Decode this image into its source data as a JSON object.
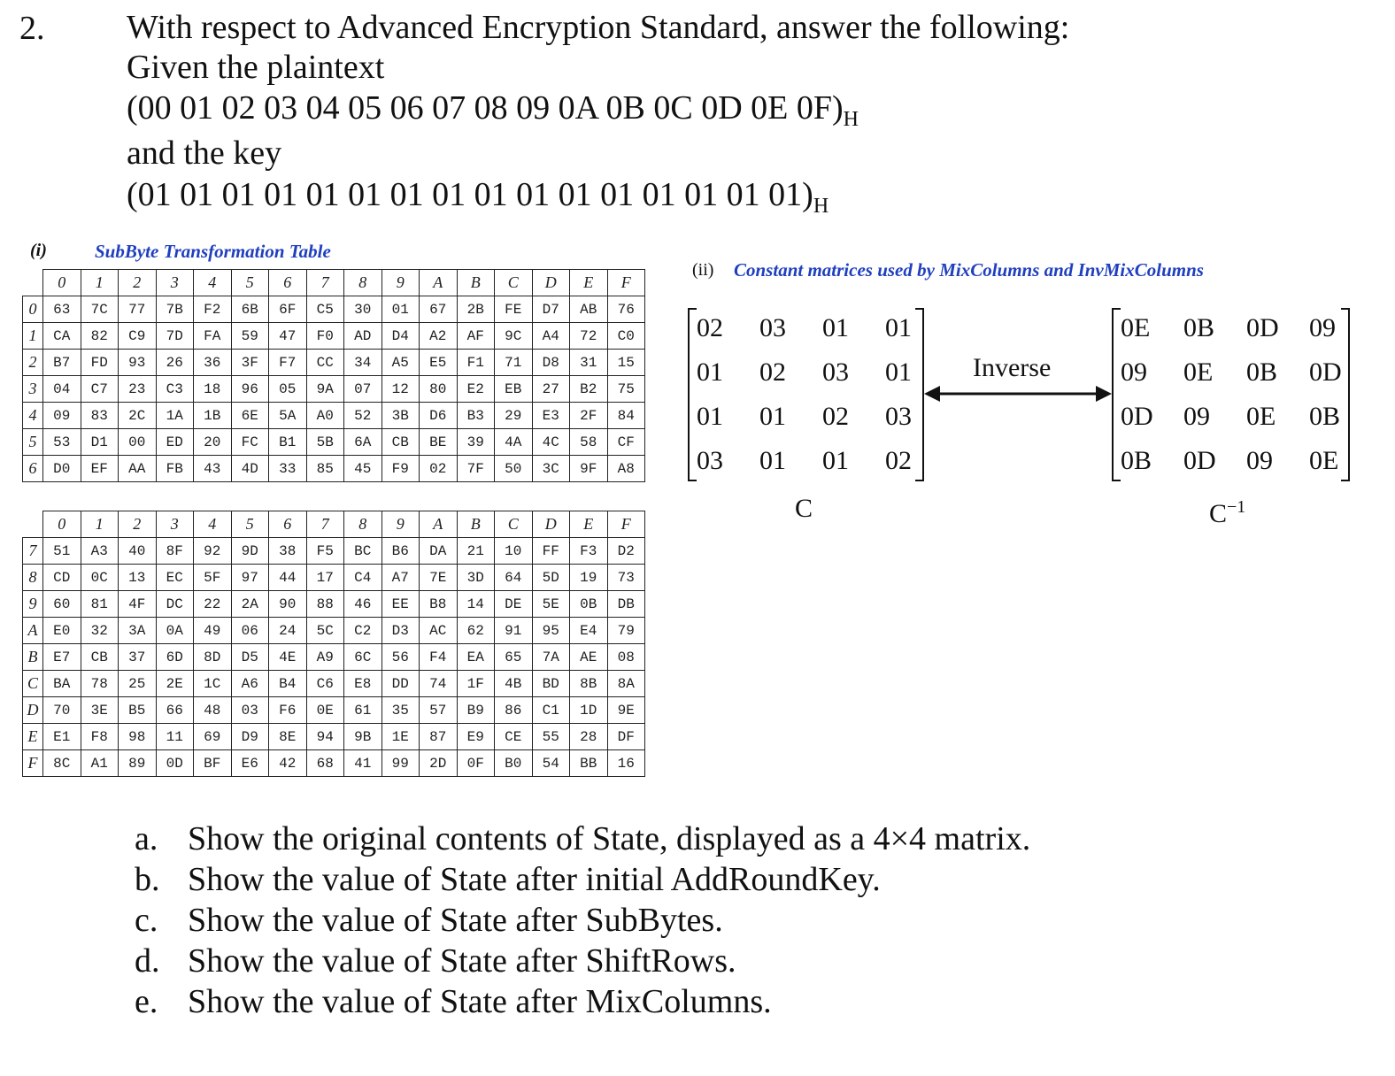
{
  "question": {
    "number": "2.",
    "lines": [
      "With respect to Advanced Encryption Standard, answer the following:",
      "Given the plaintext",
      "(00 01 02 03 04 05 06 07 08 09 0A 0B 0C 0D 0E 0F)",
      "and the key",
      "(01 01 01 01 01 01 01 01 01 01 01 01 01 01 01 01)"
    ],
    "subscript": "H"
  },
  "sbox": {
    "section_num": "(i)",
    "title": "SubByte Transformation Table",
    "col_headers": [
      "0",
      "1",
      "2",
      "3",
      "4",
      "5",
      "6",
      "7",
      "8",
      "9",
      "A",
      "B",
      "C",
      "D",
      "E",
      "F"
    ],
    "rows_top": [
      {
        "h": "0",
        "c": [
          "63",
          "7C",
          "77",
          "7B",
          "F2",
          "6B",
          "6F",
          "C5",
          "30",
          "01",
          "67",
          "2B",
          "FE",
          "D7",
          "AB",
          "76"
        ]
      },
      {
        "h": "1",
        "c": [
          "CA",
          "82",
          "C9",
          "7D",
          "FA",
          "59",
          "47",
          "F0",
          "AD",
          "D4",
          "A2",
          "AF",
          "9C",
          "A4",
          "72",
          "C0"
        ]
      },
      {
        "h": "2",
        "c": [
          "B7",
          "FD",
          "93",
          "26",
          "36",
          "3F",
          "F7",
          "CC",
          "34",
          "A5",
          "E5",
          "F1",
          "71",
          "D8",
          "31",
          "15"
        ]
      },
      {
        "h": "3",
        "c": [
          "04",
          "C7",
          "23",
          "C3",
          "18",
          "96",
          "05",
          "9A",
          "07",
          "12",
          "80",
          "E2",
          "EB",
          "27",
          "B2",
          "75"
        ]
      },
      {
        "h": "4",
        "c": [
          "09",
          "83",
          "2C",
          "1A",
          "1B",
          "6E",
          "5A",
          "A0",
          "52",
          "3B",
          "D6",
          "B3",
          "29",
          "E3",
          "2F",
          "84"
        ]
      },
      {
        "h": "5",
        "c": [
          "53",
          "D1",
          "00",
          "ED",
          "20",
          "FC",
          "B1",
          "5B",
          "6A",
          "CB",
          "BE",
          "39",
          "4A",
          "4C",
          "58",
          "CF"
        ]
      },
      {
        "h": "6",
        "c": [
          "D0",
          "EF",
          "AA",
          "FB",
          "43",
          "4D",
          "33",
          "85",
          "45",
          "F9",
          "02",
          "7F",
          "50",
          "3C",
          "9F",
          "A8"
        ]
      }
    ],
    "rows_bottom": [
      {
        "h": "7",
        "c": [
          "51",
          "A3",
          "40",
          "8F",
          "92",
          "9D",
          "38",
          "F5",
          "BC",
          "B6",
          "DA",
          "21",
          "10",
          "FF",
          "F3",
          "D2"
        ]
      },
      {
        "h": "8",
        "c": [
          "CD",
          "0C",
          "13",
          "EC",
          "5F",
          "97",
          "44",
          "17",
          "C4",
          "A7",
          "7E",
          "3D",
          "64",
          "5D",
          "19",
          "73"
        ]
      },
      {
        "h": "9",
        "c": [
          "60",
          "81",
          "4F",
          "DC",
          "22",
          "2A",
          "90",
          "88",
          "46",
          "EE",
          "B8",
          "14",
          "DE",
          "5E",
          "0B",
          "DB"
        ]
      },
      {
        "h": "A",
        "c": [
          "E0",
          "32",
          "3A",
          "0A",
          "49",
          "06",
          "24",
          "5C",
          "C2",
          "D3",
          "AC",
          "62",
          "91",
          "95",
          "E4",
          "79"
        ]
      },
      {
        "h": "B",
        "c": [
          "E7",
          "CB",
          "37",
          "6D",
          "8D",
          "D5",
          "4E",
          "A9",
          "6C",
          "56",
          "F4",
          "EA",
          "65",
          "7A",
          "AE",
          "08"
        ]
      },
      {
        "h": "C",
        "c": [
          "BA",
          "78",
          "25",
          "2E",
          "1C",
          "A6",
          "B4",
          "C6",
          "E8",
          "DD",
          "74",
          "1F",
          "4B",
          "BD",
          "8B",
          "8A"
        ]
      },
      {
        "h": "D",
        "c": [
          "70",
          "3E",
          "B5",
          "66",
          "48",
          "03",
          "F6",
          "0E",
          "61",
          "35",
          "57",
          "B9",
          "86",
          "C1",
          "1D",
          "9E"
        ]
      },
      {
        "h": "E",
        "c": [
          "E1",
          "F8",
          "98",
          "11",
          "69",
          "D9",
          "8E",
          "94",
          "9B",
          "1E",
          "87",
          "E9",
          "CE",
          "55",
          "28",
          "DF"
        ]
      },
      {
        "h": "F",
        "c": [
          "8C",
          "A1",
          "89",
          "0D",
          "BF",
          "E6",
          "42",
          "68",
          "41",
          "99",
          "2D",
          "0F",
          "B0",
          "54",
          "BB",
          "16"
        ]
      }
    ]
  },
  "mix": {
    "section_num": "(ii)",
    "title": "Constant matrices used by MixColumns and InvMixColumns",
    "C": [
      [
        "02",
        "03",
        "01",
        "01"
      ],
      [
        "01",
        "02",
        "03",
        "01"
      ],
      [
        "01",
        "01",
        "02",
        "03"
      ],
      [
        "03",
        "01",
        "01",
        "02"
      ]
    ],
    "Cinv": [
      [
        "0E",
        "0B",
        "0D",
        "09"
      ],
      [
        "09",
        "0E",
        "0B",
        "0D"
      ],
      [
        "0D",
        "09",
        "0E",
        "0B"
      ],
      [
        "0B",
        "0D",
        "09",
        "0E"
      ]
    ],
    "C_label": "C",
    "Cinv_label": "C",
    "Cinv_sup": "−1",
    "inverse_label": "Inverse"
  },
  "tasks": [
    {
      "letter": "a.",
      "text": "Show the original contents of State, displayed as a 4×4 matrix."
    },
    {
      "letter": "b.",
      "text": "Show the value of State after initial AddRoundKey."
    },
    {
      "letter": "c.",
      "text": "Show the value of State after SubBytes."
    },
    {
      "letter": "d.",
      "text": "Show the value of State after ShiftRows."
    },
    {
      "letter": "e.",
      "text": "Show the value of State after MixColumns."
    }
  ]
}
